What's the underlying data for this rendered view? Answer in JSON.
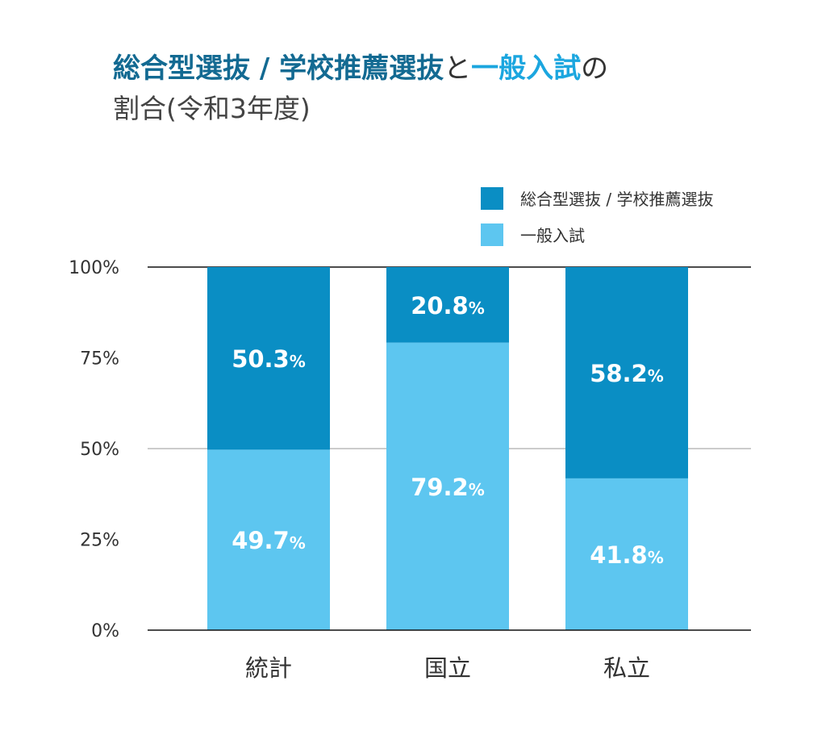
{
  "title": {
    "part1": "総合型選抜 / 学校推薦選抜",
    "part2": "と",
    "part3": "一般入試",
    "part4": "の",
    "line2": "割合(令和3年度)"
  },
  "colors": {
    "selection": "#0a8ec4",
    "general": "#5dc6f0",
    "title_dark": "#136a92",
    "title_light": "#1ba6df"
  },
  "chart_data": {
    "type": "bar",
    "stacked": true,
    "categories": [
      "統計",
      "国立",
      "私立"
    ],
    "series": [
      {
        "name": "一般入試",
        "values": [
          49.7,
          79.2,
          41.8
        ],
        "labels": [
          "49.7%",
          "79.2%",
          "41.8%"
        ]
      },
      {
        "name": "総合型選抜 / 学校推薦選抜",
        "values": [
          50.3,
          20.8,
          58.2
        ],
        "labels": [
          "50.3%",
          "20.8%",
          "58.2%"
        ]
      }
    ],
    "ylim": [
      0,
      100
    ],
    "yticks": [
      "0%",
      "25%",
      "50%",
      "75%",
      "100%"
    ],
    "legend": "top-right"
  }
}
